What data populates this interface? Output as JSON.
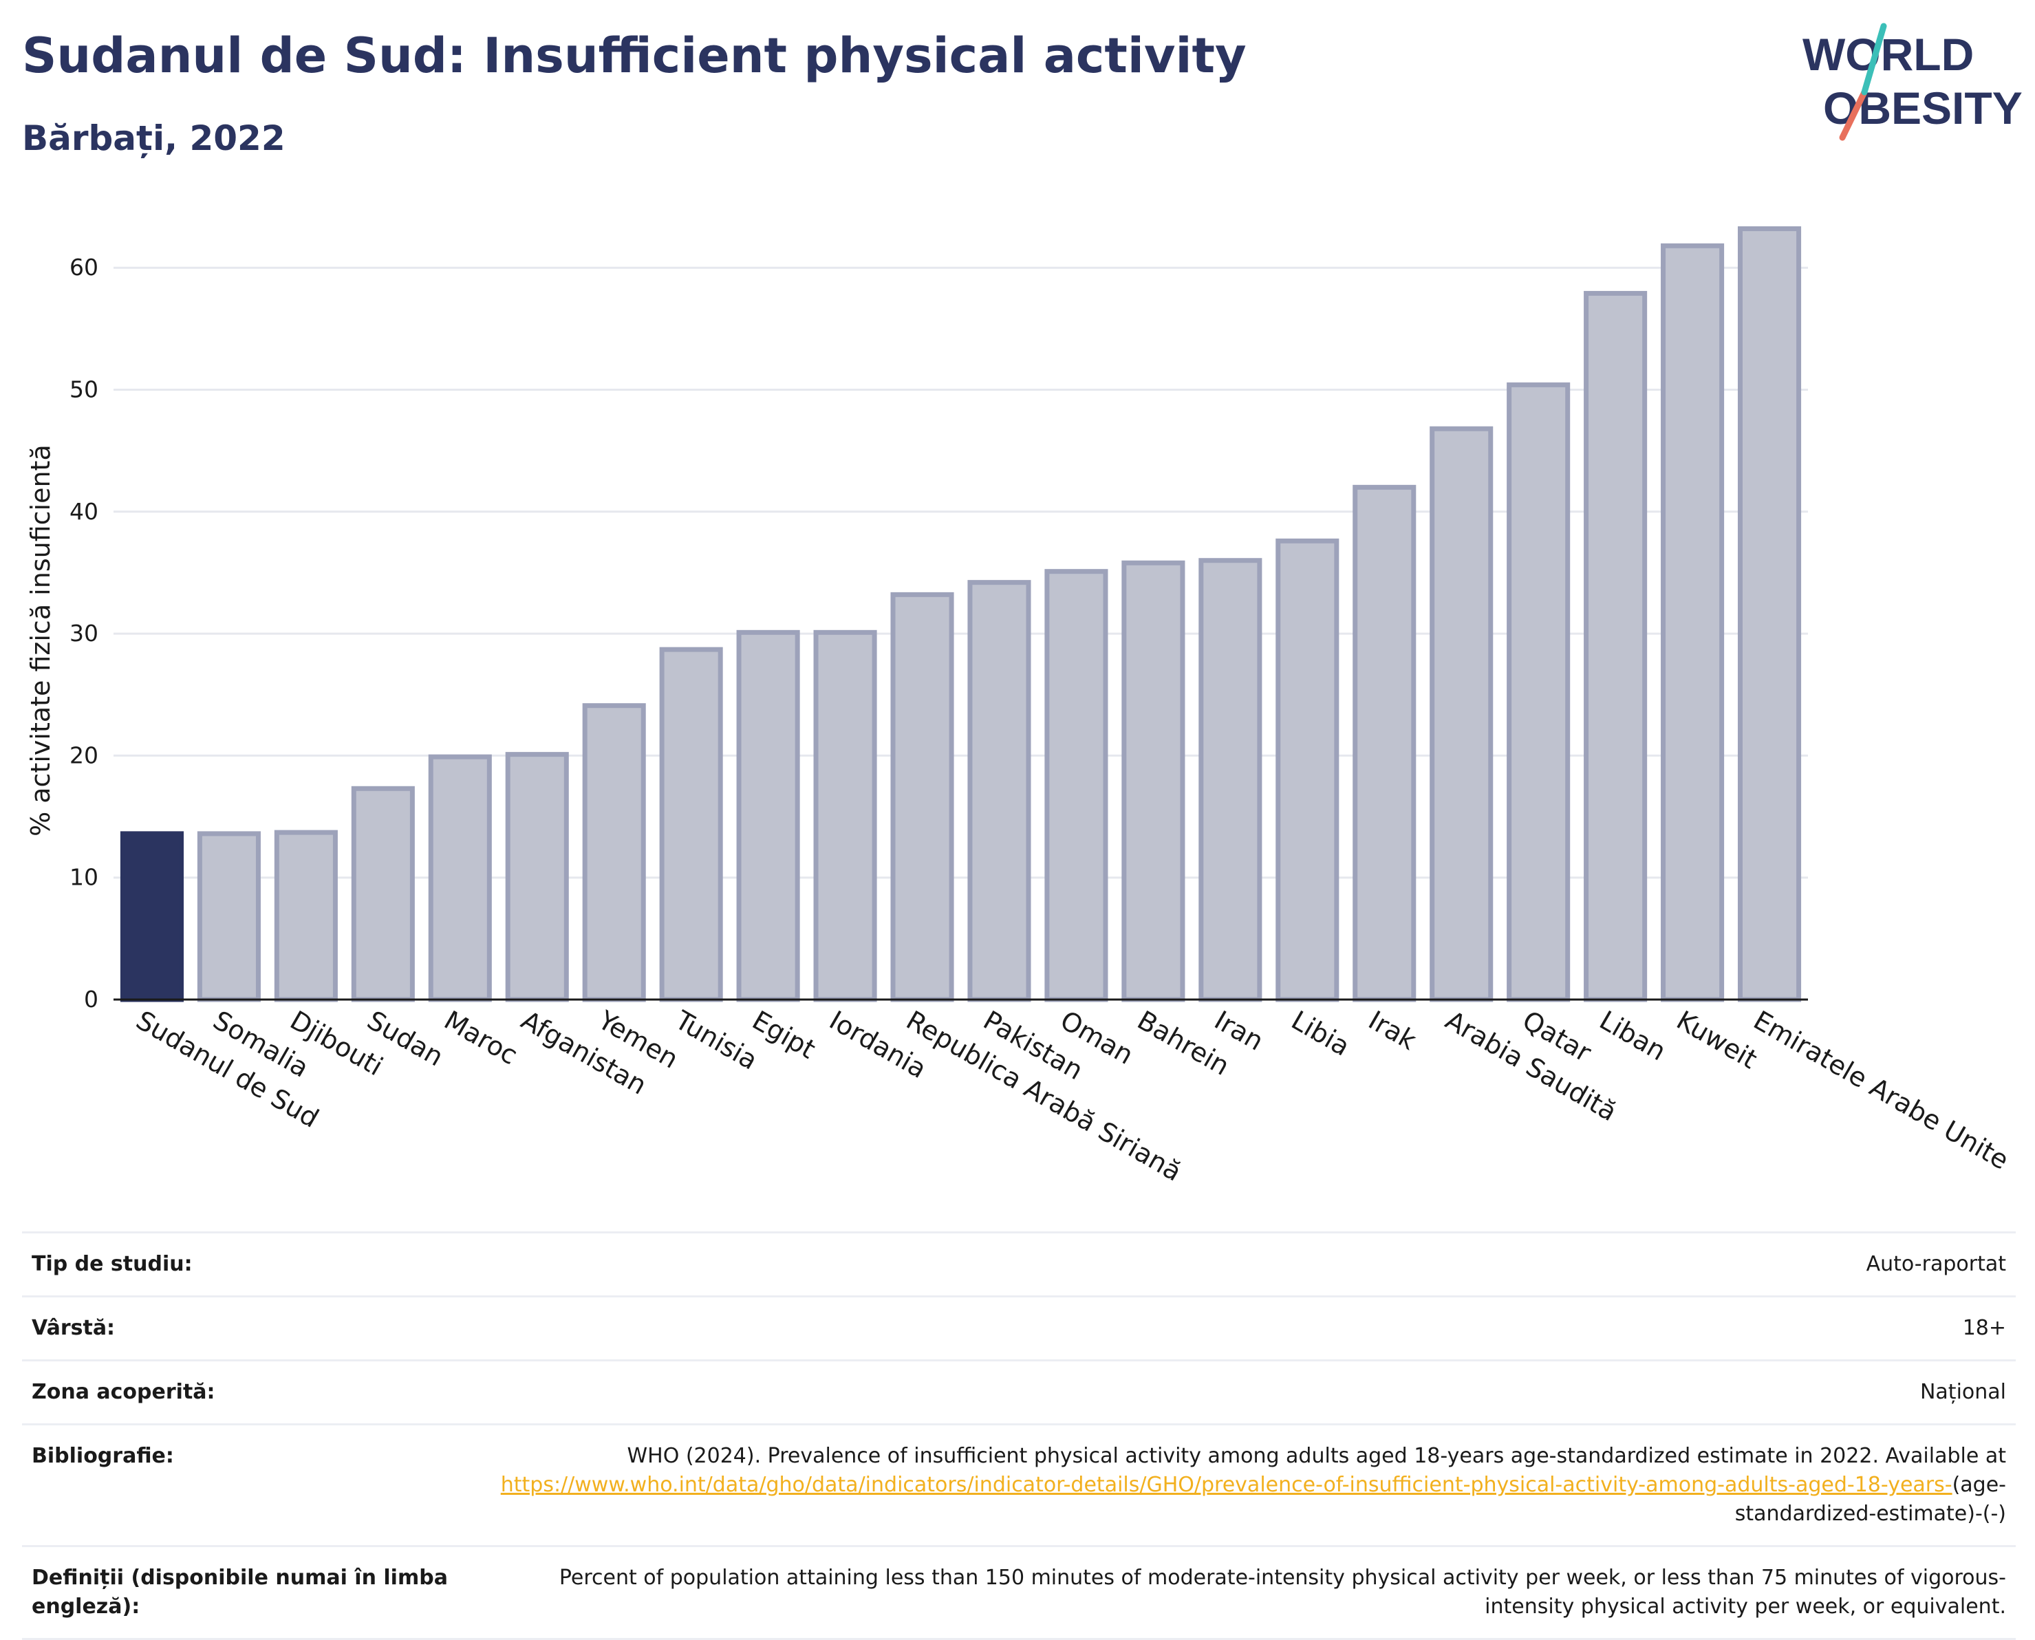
{
  "header": {
    "title": "Sudanul de Sud: Insufficient physical activity",
    "subtitle": "Bărbați, 2022",
    "logo_line1": "WORLD",
    "logo_line2": "OBESITY"
  },
  "chart_data": {
    "type": "bar",
    "title": "Sudanul de Sud: Insufficient physical activity",
    "subtitle": "Bărbați, 2022",
    "ylabel": "% activitate fizică insuficientă",
    "xlabel": "",
    "ylim": [
      0,
      65
    ],
    "yticks": [
      0,
      10,
      20,
      30,
      40,
      50,
      60
    ],
    "grid": true,
    "highlight": "Sudanul de Sud",
    "categories": [
      "Sudanul de Sud",
      "Somalia",
      "Djibouti",
      "Sudan",
      "Maroc",
      "Afganistan",
      "Yemen",
      "Tunisia",
      "Egipt",
      "Iordania",
      "Republica Arabă Siriană",
      "Pakistan",
      "Oman",
      "Bahrein",
      "Iran",
      "Libia",
      "Irak",
      "Arabia Saudită",
      "Qatar",
      "Liban",
      "Kuweit",
      "Emiratele Arabe Unite"
    ],
    "values": [
      13.6,
      13.6,
      13.7,
      17.3,
      19.9,
      20.1,
      24.1,
      28.7,
      30.1,
      30.1,
      33.2,
      34.2,
      35.1,
      35.8,
      36.0,
      37.6,
      42.0,
      46.8,
      50.4,
      57.9,
      61.8,
      63.2
    ],
    "colors": {
      "highlight": "#2b3460",
      "other_fill": "#bfc2cf",
      "other_stroke": "#9da2ba"
    }
  },
  "meta": {
    "study_type_label": "Tip de studiu:",
    "study_type_value": "Auto-raportat",
    "age_label": "Vârstă:",
    "age_value": "18+",
    "coverage_label": "Zona acoperită:",
    "coverage_value": "Național",
    "bibliography_label": "Bibliografie:",
    "bibliography_text": "WHO (2024). Prevalence of insufficient physical activity among adults aged 18-years age-standardized estimate in 2022. Available at",
    "bibliography_link": "https://www.who.int/data/gho/data/indicators/indicator-details/GHO/prevalence-of-insufficient-physical-activity-among-adults-aged-18-years-",
    "bibliography_suffix": "(age-standardized-estimate)-(-)",
    "definitions_label": "Definiții (disponibile numai în limba engleză):",
    "definitions_value": "Percent of population attaining less than 150 minutes of moderate-intensity physical activity per week, or less than 75 minutes of vigorous-intensity physical activity per week, or equivalent."
  }
}
